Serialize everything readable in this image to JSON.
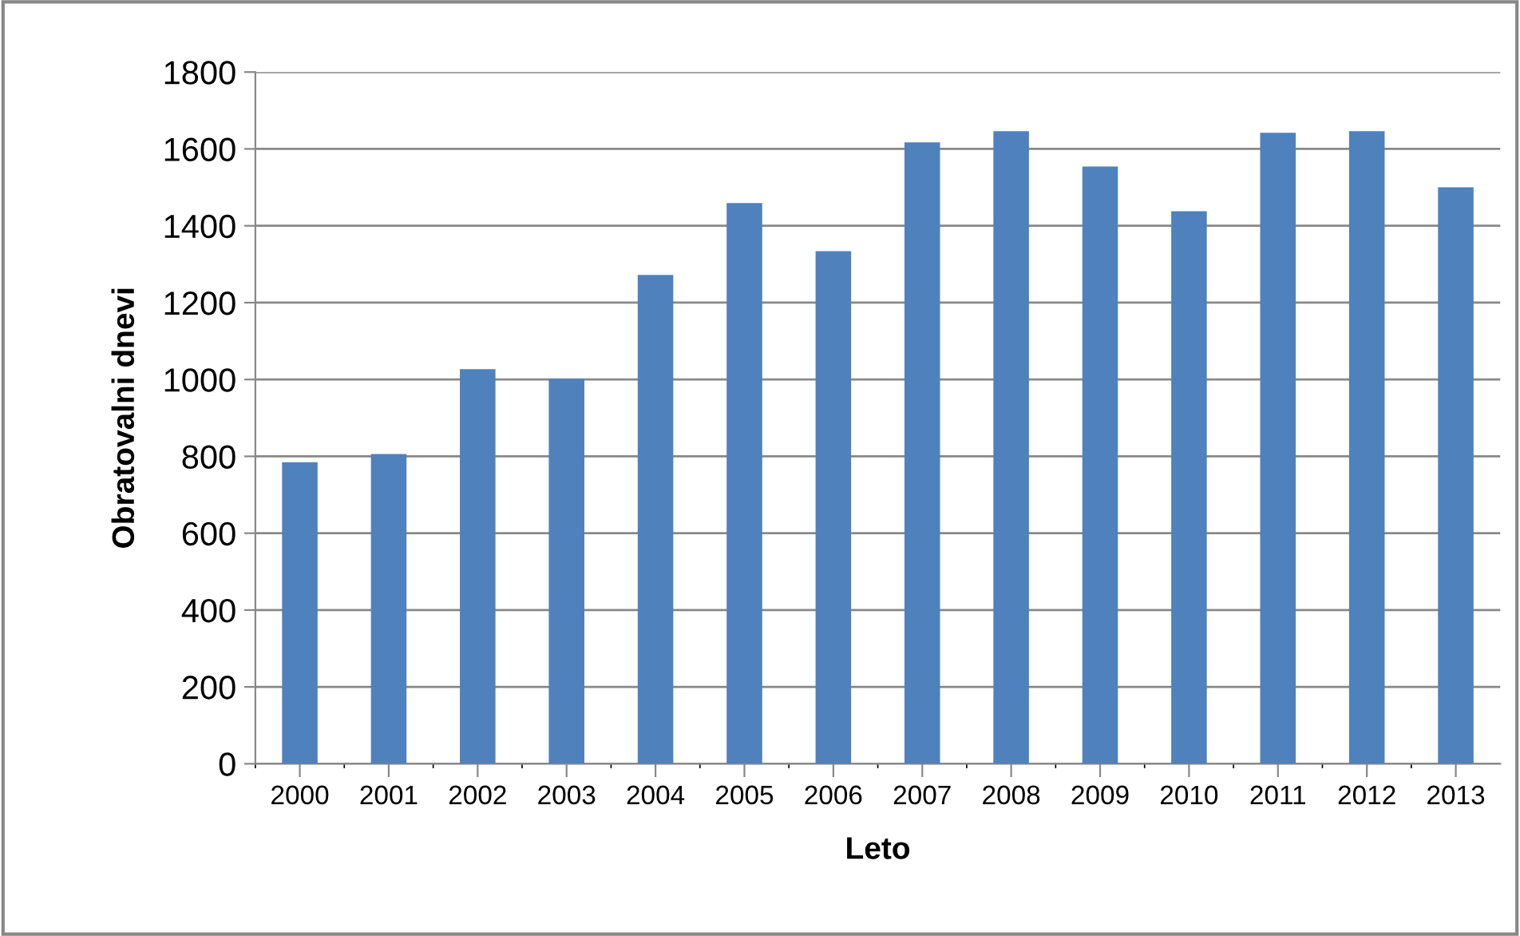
{
  "chart_data": {
    "type": "bar",
    "xlabel": "Leto",
    "ylabel": "Obratovalni dnevi",
    "categories": [
      "2000",
      "2001",
      "2002",
      "2003",
      "2004",
      "2005",
      "2006",
      "2007",
      "2008",
      "2009",
      "2010",
      "2011",
      "2012",
      "2013"
    ],
    "values": [
      785,
      806,
      1027,
      1002,
      1272,
      1459,
      1334,
      1617,
      1646,
      1554,
      1438,
      1642,
      1646,
      1500
    ],
    "color": "#4f81bd",
    "ylim": [
      0,
      1800
    ],
    "yticks": [
      0,
      200,
      400,
      600,
      800,
      1000,
      1200,
      1400,
      1600,
      1800
    ],
    "grid": "y",
    "legend": false
  }
}
